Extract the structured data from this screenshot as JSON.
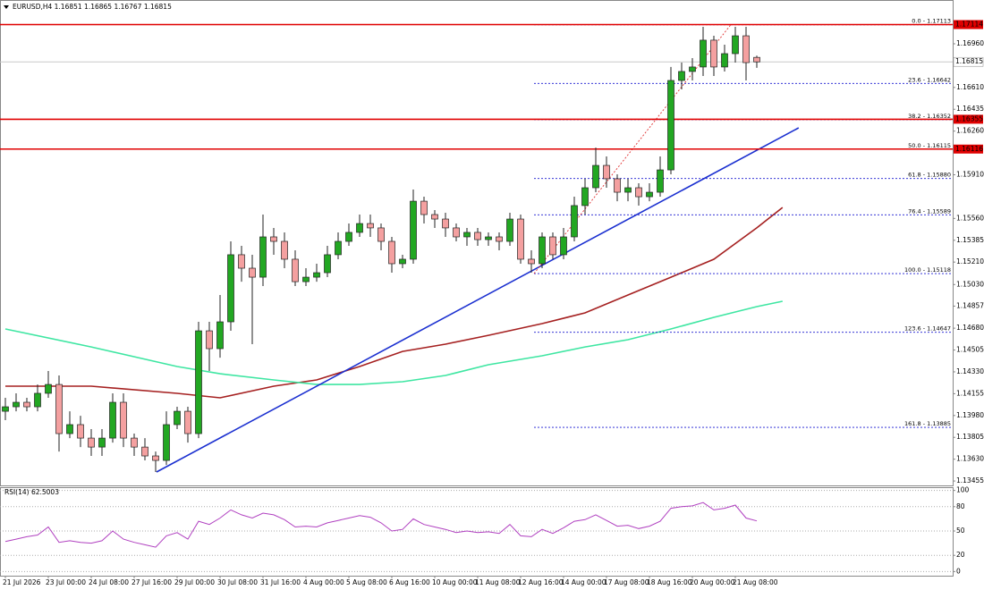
{
  "chart_data": [
    {
      "type": "candlestick",
      "title": "EURUSD,H4  1.16851 1.16865 1.16767 1.16815",
      "categories": [
        "21 Jul 2026",
        null,
        null,
        null,
        "23 Jul 00:00",
        null,
        null,
        null,
        "24 Jul 08:00",
        null,
        null,
        null,
        "27 Jul 16:00",
        null,
        null,
        null,
        "29 Jul 00:00",
        null,
        null,
        null,
        "30 Jul 08:00",
        null,
        null,
        null,
        "31 Jul 16:00",
        null,
        null,
        null,
        "4 Aug 00:00",
        null,
        null,
        null,
        "5 Aug 08:00",
        null,
        null,
        null,
        "6 Aug 16:00",
        null,
        null,
        null,
        "10 Aug 00:00",
        null,
        null,
        null,
        "11 Aug 08:00",
        null,
        null,
        null,
        "12 Aug 16:00",
        null,
        null,
        null,
        "14 Aug 00:00",
        null,
        null,
        null,
        "17 Aug 08:00",
        null,
        null,
        null,
        "18 Aug 16:00",
        null,
        null,
        null,
        "20 Aug 00:00",
        null,
        null,
        null,
        "21 Aug 08:00",
        null,
        null
      ],
      "ohlc": [
        [
          1.14014,
          1.14122,
          1.13943,
          1.1405
        ],
        [
          1.1405,
          1.14158,
          1.14014,
          1.14086
        ],
        [
          1.14086,
          1.14122,
          1.14014,
          1.1405
        ],
        [
          1.1405,
          1.14229,
          1.14014,
          1.14158
        ],
        [
          1.14158,
          1.14337,
          1.14122,
          1.14229
        ],
        [
          1.14229,
          1.14301,
          1.13691,
          1.13835
        ],
        [
          1.13835,
          1.14014,
          1.13799,
          1.13907
        ],
        [
          1.13907,
          1.13978,
          1.13727,
          1.13799
        ],
        [
          1.13799,
          1.13871,
          1.13656,
          1.13727
        ],
        [
          1.13727,
          1.13871,
          1.13656,
          1.13799
        ],
        [
          1.13799,
          1.14158,
          1.13763,
          1.14086
        ],
        [
          1.14086,
          1.14158,
          1.13727,
          1.13799
        ],
        [
          1.13799,
          1.13835,
          1.13656,
          1.13727
        ],
        [
          1.13727,
          1.13799,
          1.1362,
          1.13656
        ],
        [
          1.13656,
          1.13691,
          1.13527,
          1.1362
        ],
        [
          1.1362,
          1.14014,
          1.13584,
          1.13907
        ],
        [
          1.13907,
          1.1405,
          1.13871,
          1.14014
        ],
        [
          1.14014,
          1.1405,
          1.13763,
          1.13835
        ],
        [
          1.13835,
          1.14731,
          1.13799,
          1.14659
        ],
        [
          1.14659,
          1.14731,
          1.14337,
          1.14516
        ],
        [
          1.14516,
          1.14946,
          1.14444,
          1.14731
        ],
        [
          1.14731,
          1.15376,
          1.14659,
          1.15269
        ],
        [
          1.15269,
          1.1534,
          1.15053,
          1.15161
        ],
        [
          1.15161,
          1.15269,
          1.14552,
          1.15089
        ],
        [
          1.15089,
          1.15591,
          1.15018,
          1.15412
        ],
        [
          1.15412,
          1.15484,
          1.15269,
          1.15376
        ],
        [
          1.15376,
          1.15448,
          1.15161,
          1.15233
        ],
        [
          1.15233,
          1.15304,
          1.15018,
          1.15053
        ],
        [
          1.15053,
          1.15161,
          1.15018,
          1.15089
        ],
        [
          1.15089,
          1.15197,
          1.15053,
          1.15125
        ],
        [
          1.15125,
          1.1534,
          1.15089,
          1.15269
        ],
        [
          1.15269,
          1.15448,
          1.15233,
          1.15376
        ],
        [
          1.15376,
          1.15519,
          1.1534,
          1.15448
        ],
        [
          1.15448,
          1.15591,
          1.15412,
          1.15519
        ],
        [
          1.15519,
          1.15591,
          1.15412,
          1.15484
        ],
        [
          1.15484,
          1.15519,
          1.15304,
          1.15376
        ],
        [
          1.15376,
          1.15412,
          1.15125,
          1.15197
        ],
        [
          1.15197,
          1.15269,
          1.15161,
          1.15233
        ],
        [
          1.15233,
          1.15792,
          1.15197,
          1.15698
        ],
        [
          1.15698,
          1.15734,
          1.15519,
          1.15591
        ],
        [
          1.15591,
          1.15627,
          1.15484,
          1.15555
        ],
        [
          1.15555,
          1.15605,
          1.15412,
          1.15484
        ],
        [
          1.15484,
          1.15519,
          1.15376,
          1.15412
        ],
        [
          1.15412,
          1.15484,
          1.1534,
          1.15448
        ],
        [
          1.15448,
          1.15484,
          1.1534,
          1.1539
        ],
        [
          1.1539,
          1.15448,
          1.1534,
          1.15412
        ],
        [
          1.15412,
          1.15448,
          1.15304,
          1.15376
        ],
        [
          1.15376,
          1.15605,
          1.1534,
          1.15555
        ],
        [
          1.15555,
          1.15591,
          1.15197,
          1.15233
        ],
        [
          1.15233,
          1.15304,
          1.15125,
          1.15197
        ],
        [
          1.15197,
          1.15448,
          1.15161,
          1.15412
        ],
        [
          1.15412,
          1.15448,
          1.15233,
          1.15269
        ],
        [
          1.15269,
          1.15484,
          1.15233,
          1.15412
        ],
        [
          1.15412,
          1.15734,
          1.15376,
          1.15663
        ],
        [
          1.15663,
          1.15878,
          1.15591,
          1.15806
        ],
        [
          1.15806,
          1.16128,
          1.1577,
          1.15985
        ],
        [
          1.15985,
          1.16057,
          1.15806,
          1.15878
        ],
        [
          1.15878,
          1.15914,
          1.15698,
          1.1577
        ],
        [
          1.1577,
          1.15878,
          1.15698,
          1.15806
        ],
        [
          1.15806,
          1.15842,
          1.15663,
          1.15734
        ],
        [
          1.15734,
          1.15842,
          1.15698,
          1.1577
        ],
        [
          1.1577,
          1.16057,
          1.15734,
          1.15949
        ],
        [
          1.15949,
          1.16774,
          1.15914,
          1.16666
        ],
        [
          1.16666,
          1.16809,
          1.16594,
          1.16738
        ],
        [
          1.16738,
          1.16845,
          1.16666,
          1.16774
        ],
        [
          1.16774,
          1.17096,
          1.16702,
          1.16989
        ],
        [
          1.16989,
          1.17024,
          1.16702,
          1.16774
        ],
        [
          1.16774,
          1.16953,
          1.16738,
          1.16881
        ],
        [
          1.16881,
          1.17096,
          1.16809,
          1.17024
        ],
        [
          1.17024,
          1.17096,
          1.16666,
          1.16809
        ],
        [
          1.16851,
          1.16865,
          1.16767,
          1.16815
        ]
      ],
      "up_color": "#22a722",
      "down_color": "#f4a0a0",
      "ylim": [
        1.13434,
        1.17182
      ],
      "yticks": [
        {
          "value": 1.1696,
          "label": "1.16960"
        },
        {
          "value": 1.1661,
          "label": "1.16610"
        },
        1.16435,
        {
          "value": 1.1626,
          "label": "1.16260"
        },
        {
          "value": 1.1591,
          "label": "1.15910"
        },
        {
          "value": 1.1556,
          "label": "1.15560"
        },
        1.15385,
        {
          "value": 1.1521,
          "label": "1.15210"
        },
        {
          "value": 1.1503,
          "label": "1.15030"
        },
        1.14857,
        {
          "value": 1.1468,
          "label": "1.14680"
        },
        1.14505,
        {
          "value": 1.1433,
          "label": "1.14330"
        },
        1.14155,
        {
          "value": 1.1398,
          "label": "1.13980"
        },
        1.13805,
        {
          "value": 1.1363,
          "label": "1.13630"
        },
        1.13455
      ],
      "grid": false,
      "moving_averages": [
        {
          "color": "#a52020",
          "x": [
            0,
            8,
            16,
            20,
            25,
            29,
            33,
            37,
            41,
            45,
            50,
            54,
            58,
            62,
            66,
            70,
            72.4
          ],
          "values": [
            1.14215,
            1.14215,
            1.14158,
            1.14122,
            1.14215,
            1.14265,
            1.14373,
            1.14494,
            1.14552,
            1.14623,
            1.14717,
            1.14803,
            1.14946,
            1.15089,
            1.15233,
            1.15484,
            1.15648
          ]
        },
        {
          "color": "#3ee6a2",
          "x": [
            0,
            8,
            16,
            20,
            25,
            29,
            33,
            37,
            41,
            45,
            50,
            54,
            58,
            62,
            66,
            70,
            72.4
          ],
          "values": [
            1.14674,
            1.1453,
            1.14373,
            1.14315,
            1.14265,
            1.14229,
            1.14229,
            1.14251,
            1.14301,
            1.14387,
            1.14459,
            1.1453,
            1.14588,
            1.14674,
            1.14767,
            1.14853,
            1.14896
          ]
        }
      ],
      "trendline": {
        "color": "#1a2fd0",
        "x": [
          14.08,
          73.9
        ],
        "values": [
          1.13527,
          1.16286
        ]
      },
      "fib_anchor": {
        "color": "#e03030",
        "x": [
          49.25,
          67.58
        ],
        "values": [
          1.15118,
          1.17113
        ]
      },
      "fib_color": "#1a1ad0",
      "fib_levels": [
        {
          "label": "0.0 - 1.17113",
          "value": 1.17113
        },
        {
          "label": "23.6 - 1.16642",
          "value": 1.16642
        },
        {
          "label": "38.2 - 1.16352",
          "value": 1.16352
        },
        {
          "label": "50.0 - 1.16115",
          "value": 1.16115
        },
        {
          "label": "61.8 - 1.15880",
          "value": 1.1588
        },
        {
          "label": "76.4 - 1.15589",
          "value": 1.15589
        },
        {
          "label": "100.0 - 1.15118",
          "value": 1.15118
        },
        {
          "label": "123.6 - 1.14647",
          "value": 1.14647
        },
        {
          "label": "161.8 - 1.13885",
          "value": 1.13885
        }
      ],
      "levels": [
        1.17114,
        1.16355,
        1.16116
      ],
      "level_color": "#e00000",
      "current_price": 1.16815,
      "current_color": "#c8c8c8"
    },
    {
      "type": "line",
      "title": "RSI(14) 62.5003",
      "values": [
        37,
        40,
        43,
        45,
        55,
        36,
        38,
        36,
        35,
        38,
        50,
        40,
        36,
        33,
        30,
        44,
        48,
        40,
        62,
        58,
        66,
        76,
        70,
        66,
        72,
        70,
        64,
        55,
        56,
        55,
        60,
        63,
        66,
        69,
        67,
        60,
        50,
        52,
        65,
        58,
        55,
        52,
        48,
        50,
        48,
        49,
        47,
        58,
        44,
        43,
        52,
        47,
        54,
        62,
        64,
        70,
        63,
        56,
        57,
        53,
        56,
        62,
        78,
        80,
        81,
        85,
        76,
        78,
        82,
        66,
        62.5003
      ],
      "color": "#b040c0",
      "ylim": [
        -4,
        104
      ],
      "yticks": [
        100,
        80,
        50,
        20,
        0
      ],
      "grid": true
    }
  ]
}
